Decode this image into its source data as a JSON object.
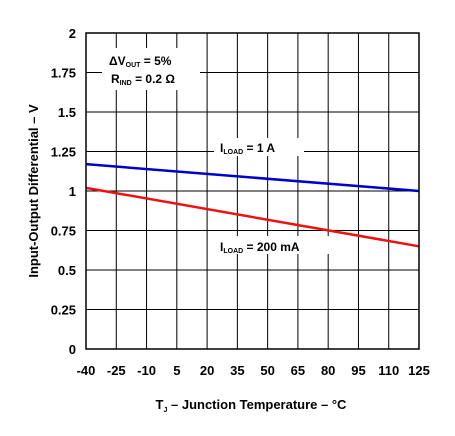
{
  "chart_data": {
    "type": "line",
    "x": [
      -40,
      125
    ],
    "xlabel": "T_J – Junction Temperature – °C",
    "xlabel_parts": {
      "symbol": "T",
      "sub": "J",
      "rest": " – Junction Temperature – °C"
    },
    "ylabel": "Input-Output Differential – V",
    "xlim": [
      -40,
      125
    ],
    "ylim": [
      0,
      2
    ],
    "xticks": [
      -40,
      -25,
      -10,
      5,
      20,
      35,
      50,
      65,
      80,
      95,
      110,
      125
    ],
    "yticks": [
      0,
      0.25,
      0.5,
      0.75,
      1,
      1.25,
      1.5,
      1.75,
      2
    ],
    "ytick_labels": [
      "0",
      "0.25",
      "0.5",
      "0.75",
      "1",
      "1.25",
      "1.5",
      "1.75",
      "2"
    ],
    "grid": true,
    "series": [
      {
        "name": "I_LOAD = 1 A",
        "color": "#0000cc",
        "x": [
          -40,
          125
        ],
        "y": [
          1.17,
          1.0
        ]
      },
      {
        "name": "I_LOAD = 200 mA",
        "color": "#ee1111",
        "x": [
          -40,
          125
        ],
        "y": [
          1.02,
          0.65
        ]
      }
    ],
    "annotations": {
      "conditions": [
        {
          "prefix": "ΔV",
          "sub": "OUT",
          "rest": " = 5%"
        },
        {
          "prefix": "R",
          "sub": "IND",
          "rest": " = 0.2 Ω"
        }
      ],
      "series_labels": [
        {
          "prefix": "I",
          "sub": "LOAD",
          "rest": " = 1 A"
        },
        {
          "prefix": "I",
          "sub": "LOAD",
          "rest": " = 200 mA"
        }
      ]
    }
  }
}
